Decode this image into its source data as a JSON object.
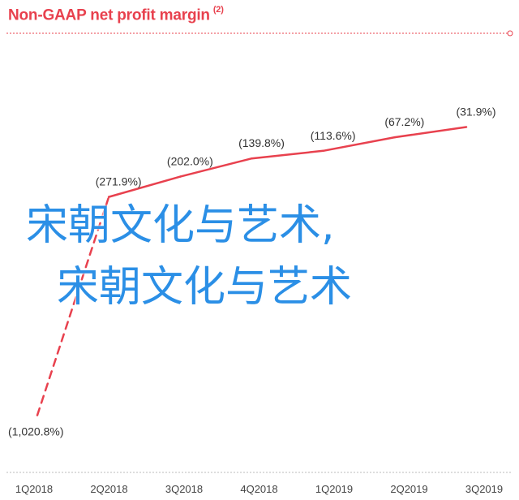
{
  "chart_data": {
    "type": "line",
    "title": "Non-GAAP net profit margin",
    "title_note": "(2)",
    "categories": [
      "1Q2018",
      "2Q2018",
      "3Q2018",
      "4Q2018",
      "1Q2019",
      "2Q2019",
      "3Q2019"
    ],
    "values": [
      -1020.8,
      -271.9,
      -202.0,
      -139.8,
      -113.6,
      -67.2,
      -31.9
    ],
    "data_labels": [
      "(1,020.8%)",
      "(271.9%)",
      "(202.0%)",
      "(139.8%)",
      "(113.6%)",
      "(67.2%)",
      "(31.9%)"
    ],
    "dashed_segment": [
      0,
      1
    ],
    "line_color": "#e8414e",
    "ylim": [
      -1100,
      0
    ],
    "grid": false
  },
  "overlay": {
    "line1": "宋朝文化与艺术,",
    "line2": "宋朝文化与艺术",
    "color": "#2b8fe6"
  }
}
